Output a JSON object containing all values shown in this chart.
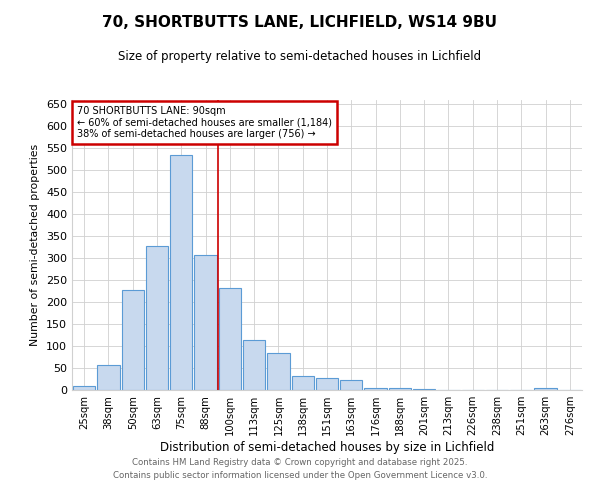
{
  "title": "70, SHORTBUTTS LANE, LICHFIELD, WS14 9BU",
  "subtitle": "Size of property relative to semi-detached houses in Lichfield",
  "xlabel": "Distribution of semi-detached houses by size in Lichfield",
  "ylabel": "Number of semi-detached properties",
  "bar_labels": [
    "25sqm",
    "38sqm",
    "50sqm",
    "63sqm",
    "75sqm",
    "88sqm",
    "100sqm",
    "113sqm",
    "125sqm",
    "138sqm",
    "151sqm",
    "163sqm",
    "176sqm",
    "188sqm",
    "201sqm",
    "213sqm",
    "226sqm",
    "238sqm",
    "251sqm",
    "263sqm",
    "276sqm"
  ],
  "bar_values": [
    8,
    58,
    228,
    328,
    535,
    308,
    232,
    113,
    85,
    32,
    28,
    22,
    5,
    5,
    3,
    0,
    0,
    0,
    0,
    5,
    0
  ],
  "bar_color": "#c8d9ee",
  "bar_edge_color": "#5b9bd5",
  "annotation_title": "70 SHORTBUTTS LANE: 90sqm",
  "annotation_line1": "← 60% of semi-detached houses are smaller (1,184)",
  "annotation_line2": "38% of semi-detached houses are larger (756) →",
  "annotation_box_color": "#ffffff",
  "annotation_box_edge": "#cc0000",
  "vline_color": "#cc0000",
  "grid_color": "#d0d0d0",
  "footer_line1": "Contains HM Land Registry data © Crown copyright and database right 2025.",
  "footer_line2": "Contains public sector information licensed under the Open Government Licence v3.0.",
  "ylim": [
    0,
    660
  ],
  "yticks": [
    0,
    50,
    100,
    150,
    200,
    250,
    300,
    350,
    400,
    450,
    500,
    550,
    600,
    650
  ]
}
